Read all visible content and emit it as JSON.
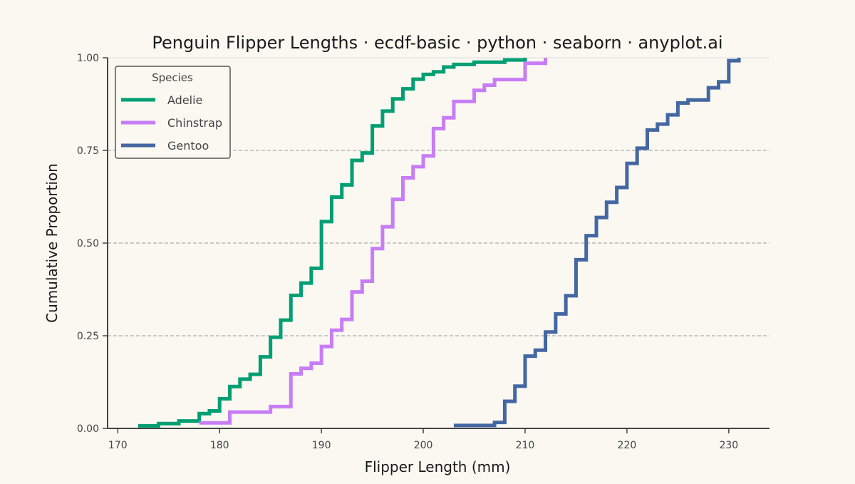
{
  "chart_data": {
    "type": "line",
    "step": true,
    "title": "Penguin Flipper Lengths · ecdf-basic · python · seaborn · anyplot.ai",
    "xlabel": "Flipper Length (mm)",
    "ylabel": "Cumulative Proportion",
    "xlim": [
      169,
      234
    ],
    "ylim": [
      0,
      1.0
    ],
    "x_ticks": [
      170,
      180,
      190,
      200,
      210,
      220,
      230
    ],
    "x_tick_labels": [
      "170",
      "180",
      "190",
      "200",
      "210",
      "220",
      "230"
    ],
    "y_ticks": [
      0,
      0.25,
      0.5,
      0.75,
      1.0
    ],
    "y_tick_labels": [
      "0.00",
      "0.25",
      "0.50",
      "0.75",
      "1.00"
    ],
    "grid": "y, dashed",
    "legend": {
      "title": "Species",
      "placement": "top-left"
    },
    "series": [
      {
        "name": "Adelie",
        "color": "#009E73",
        "x": [
          172,
          174,
          176,
          178,
          179,
          180,
          181,
          182,
          183,
          184,
          185,
          186,
          187,
          188,
          189,
          190,
          191,
          192,
          193,
          194,
          195,
          196,
          197,
          198,
          199,
          200,
          201,
          202,
          203,
          205,
          208,
          210
        ],
        "y": [
          0.007,
          0.013,
          0.02,
          0.04,
          0.047,
          0.08,
          0.113,
          0.133,
          0.146,
          0.193,
          0.246,
          0.292,
          0.359,
          0.392,
          0.432,
          0.558,
          0.624,
          0.657,
          0.723,
          0.743,
          0.816,
          0.856,
          0.889,
          0.916,
          0.942,
          0.955,
          0.962,
          0.975,
          0.982,
          0.988,
          0.994,
          1.0
        ]
      },
      {
        "name": "Chinstrap",
        "color": "#C77DF5",
        "x": [
          178,
          181,
          185,
          187,
          188,
          189,
          190,
          191,
          192,
          193,
          194,
          195,
          196,
          197,
          198,
          199,
          200,
          201,
          202,
          203,
          205,
          206,
          207,
          210,
          212
        ],
        "y": [
          0.015,
          0.044,
          0.059,
          0.147,
          0.162,
          0.176,
          0.221,
          0.265,
          0.294,
          0.368,
          0.397,
          0.485,
          0.544,
          0.618,
          0.676,
          0.706,
          0.735,
          0.809,
          0.838,
          0.882,
          0.912,
          0.926,
          0.941,
          0.985,
          1.0
        ]
      },
      {
        "name": "Gentoo",
        "color": "#4467A3",
        "x": [
          203,
          207,
          208,
          209,
          210,
          211,
          212,
          213,
          214,
          215,
          216,
          217,
          218,
          219,
          220,
          221,
          222,
          223,
          224,
          225,
          226,
          228,
          229,
          230,
          231
        ],
        "y": [
          0.008,
          0.016,
          0.073,
          0.114,
          0.195,
          0.211,
          0.26,
          0.309,
          0.358,
          0.455,
          0.52,
          0.569,
          0.61,
          0.65,
          0.715,
          0.756,
          0.805,
          0.821,
          0.846,
          0.878,
          0.886,
          0.919,
          0.935,
          0.992,
          1.0
        ]
      }
    ]
  }
}
